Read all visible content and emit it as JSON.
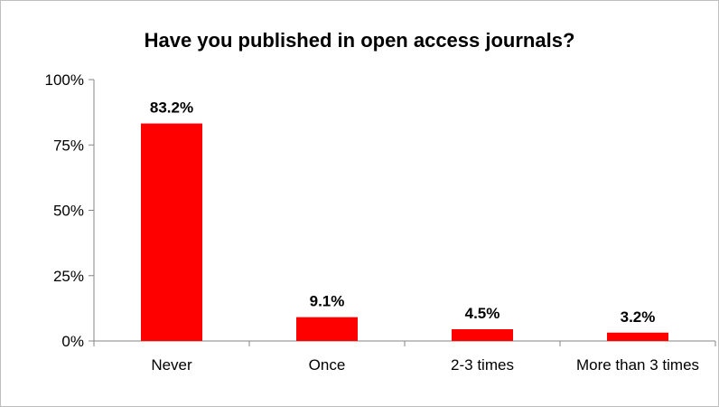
{
  "chart_data": {
    "type": "bar",
    "title": "Have you published in open access journals?",
    "categories": [
      "Never",
      "Once",
      "2-3 times",
      "More than 3 times"
    ],
    "values": [
      83.2,
      9.1,
      4.5,
      3.2
    ],
    "data_labels": [
      "83.2%",
      "9.1%",
      "4.5%",
      "3.2%"
    ],
    "ylim": [
      0,
      100
    ],
    "yticks": [
      0,
      25,
      50,
      75,
      100
    ],
    "ytick_labels": [
      "0%",
      "25%",
      "50%",
      "75%",
      "100%"
    ],
    "xlabel": "",
    "ylabel": "",
    "grid": false,
    "legend": "none",
    "bar_color": "#ff0000"
  }
}
